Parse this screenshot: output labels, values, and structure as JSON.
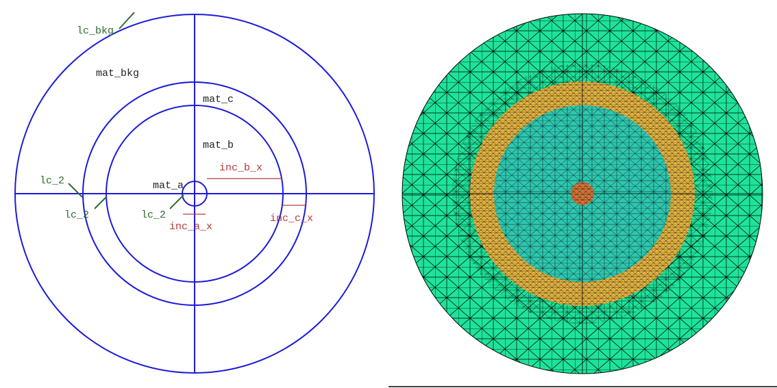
{
  "geometry_panel": {
    "labels": {
      "lc_bkg": "lc_bkg",
      "mat_bkg": "mat_bkg",
      "mat_c": "mat_c",
      "mat_b": "mat_b",
      "mat_a": "mat_a",
      "inc_b_x": "inc_b_x",
      "inc_a_x": "inc_a_x",
      "inc_c_x": "inc_c_x",
      "lc_2_left": "lc_2",
      "lc_2_mid": "lc_2",
      "lc_2_center": "lc_2"
    },
    "colors": {
      "boundary_lines": "#1a1adb",
      "material_text": "#222222",
      "inclusion_text": "#b03a3a",
      "characteristic_length_text": "#2e6b2e"
    }
  },
  "mesh_panel": {
    "colors": {
      "background_region": "#1ee39a",
      "mat_c_ring": "#e8b844",
      "mat_b_disk": "#2ec7b0",
      "mat_a_core": "#d9783a",
      "mesh_edges": "#000000"
    }
  }
}
